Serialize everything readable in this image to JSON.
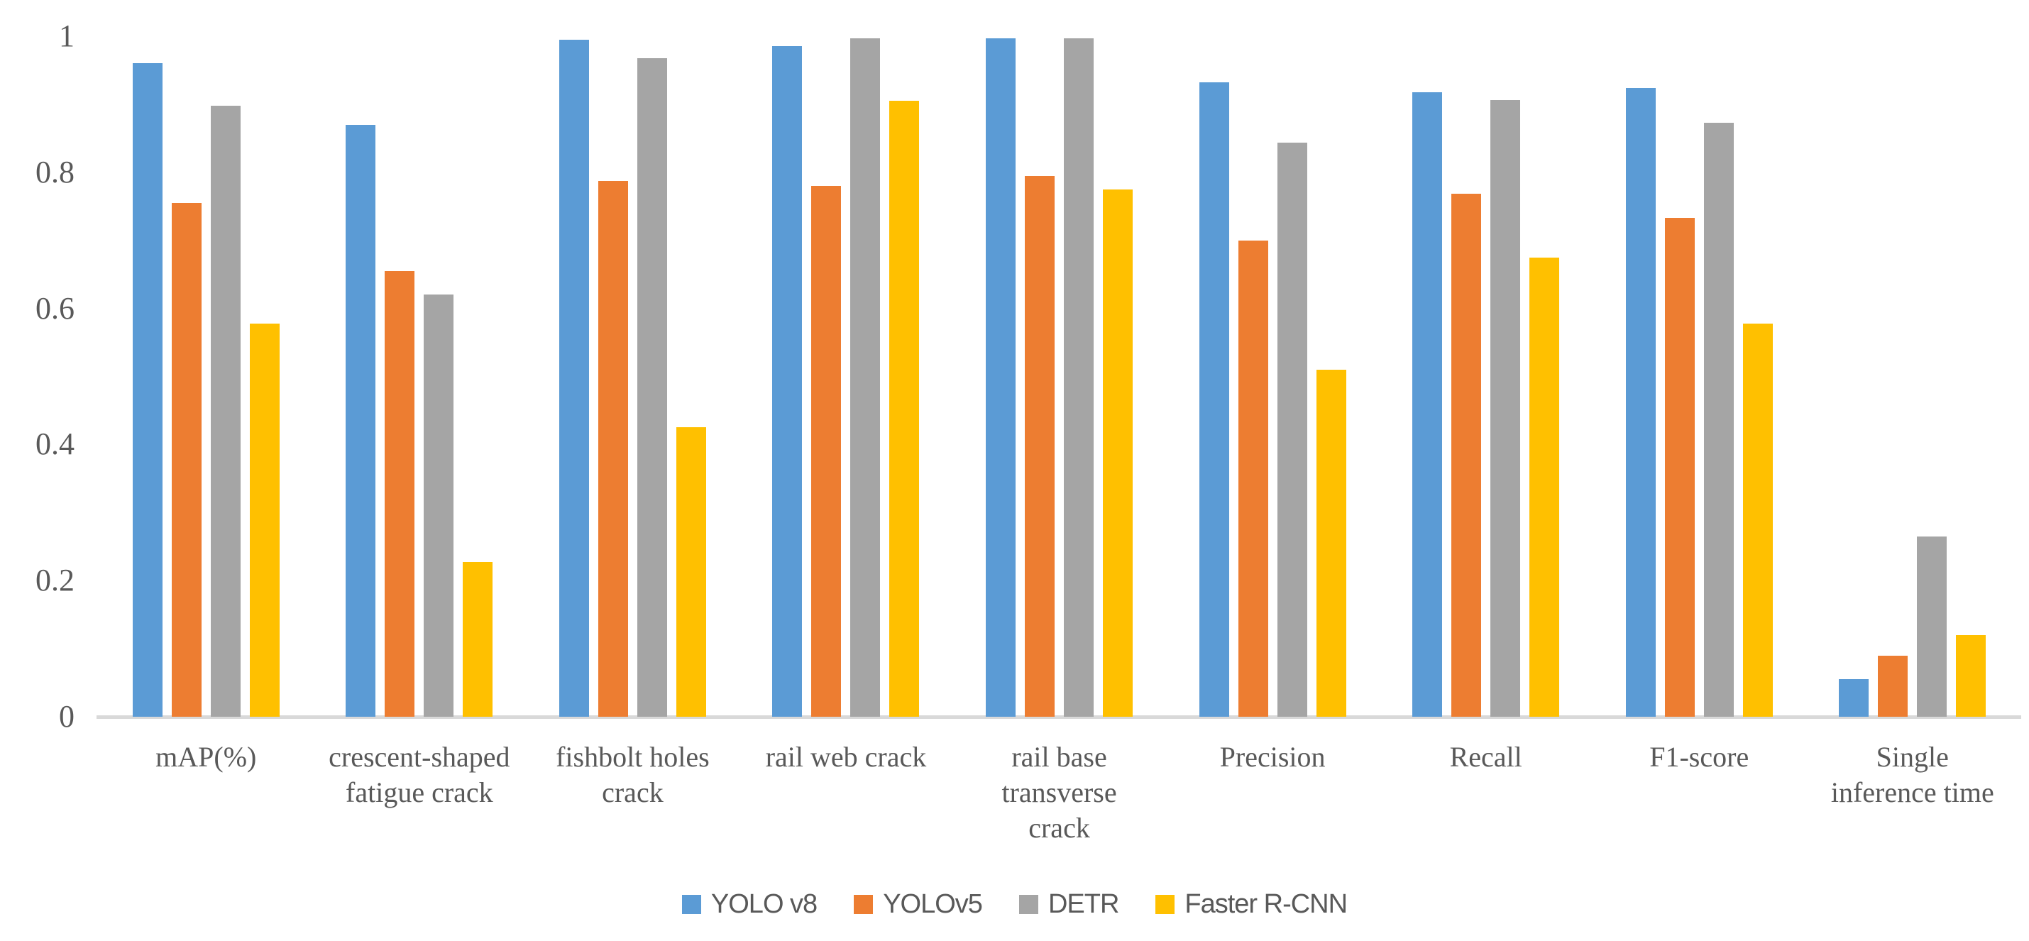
{
  "chart_data": {
    "type": "bar",
    "title": "",
    "xlabel": "",
    "ylabel": "",
    "ylim": [
      0,
      1
    ],
    "grid": false,
    "legend_position": "bottom",
    "axis_color": "#D9D9D9",
    "text_color": "#595959",
    "y_ticks": [
      0,
      0.2,
      0.4,
      0.6,
      0.8,
      1
    ],
    "y_tick_labels": [
      "0",
      "0.2",
      "0.4",
      "0.6",
      "0.8",
      "1"
    ],
    "categories": [
      "mAP(%)",
      "crescent-shaped fatigue crack",
      "fishbolt holes crack",
      "rail web crack",
      "rail base transverse crack",
      "Precision",
      "Recall",
      "F1-score",
      "Single inference time"
    ],
    "category_labels_multiline": [
      "mAP(%)",
      "crescent-shaped\nfatigue crack",
      "fishbolt holes\ncrack",
      "rail web crack",
      "rail base\ntransverse\ncrack",
      "Precision",
      "Recall",
      "F1-score",
      "Single\ninference time"
    ],
    "series": [
      {
        "name": "YOLO v8",
        "color": "#5B9BD5",
        "values": [
          0.96,
          0.87,
          0.995,
          0.985,
          0.997,
          0.932,
          0.918,
          0.924,
          0.055
        ]
      },
      {
        "name": "YOLOv5",
        "color": "#ED7D31",
        "values": [
          0.755,
          0.655,
          0.787,
          0.78,
          0.795,
          0.7,
          0.768,
          0.733,
          0.09
        ]
      },
      {
        "name": "DETR",
        "color": "#A5A5A5",
        "values": [
          0.898,
          0.62,
          0.968,
          0.997,
          0.997,
          0.844,
          0.906,
          0.873,
          0.265
        ]
      },
      {
        "name": "Faster R-CNN",
        "color": "#FFC000",
        "values": [
          0.578,
          0.227,
          0.425,
          0.905,
          0.775,
          0.51,
          0.675,
          0.578,
          0.12
        ]
      }
    ]
  }
}
